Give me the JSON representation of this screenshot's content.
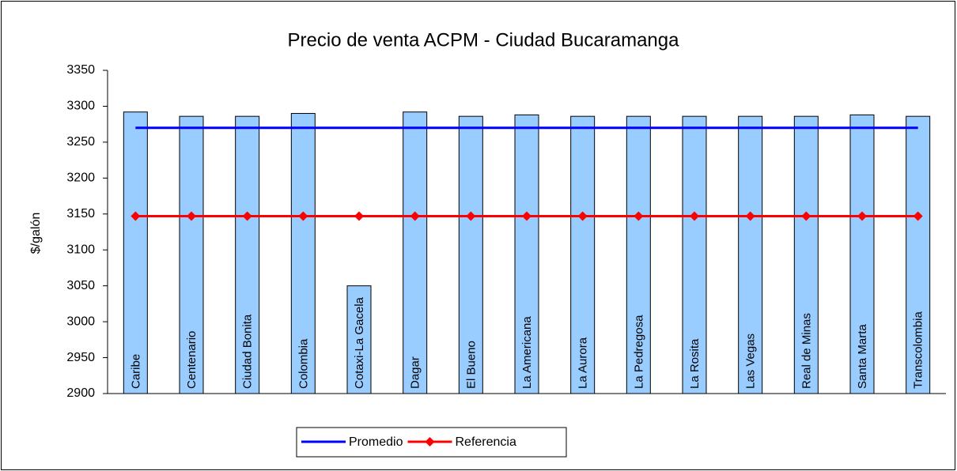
{
  "chart_data": {
    "type": "bar",
    "title": "Precio de venta ACPM - Ciudad Bucaramanga",
    "y_label": "$/galón",
    "categories": [
      "Caribe",
      "Centenario",
      "Ciudad Bonita",
      "Colombia",
      "Cotaxi-La Gacela",
      "Dagar",
      "El Bueno",
      "La Americana",
      "La Aurora",
      "La Pedregosa",
      "La Rosita",
      "Las Vegas",
      "Real de Minas",
      "Santa Marta",
      "Transcolombia"
    ],
    "values": [
      3292,
      3286,
      3286,
      3290,
      3050,
      3292,
      3286,
      3288,
      3286,
      3286,
      3286,
      3286,
      3286,
      3288,
      3286
    ],
    "color": "#99ccff",
    "series": [
      {
        "name": "Promedio",
        "color": "#0000ff",
        "marker": false,
        "values": [
          3270,
          3270,
          3270,
          3270,
          3270,
          3270,
          3270,
          3270,
          3270,
          3270,
          3270,
          3270,
          3270,
          3270,
          3270
        ]
      },
      {
        "name": "Referencia",
        "color": "#ff0000",
        "marker": true,
        "values": [
          3147,
          3147,
          3147,
          3147,
          3147,
          3147,
          3147,
          3147,
          3147,
          3147,
          3147,
          3147,
          3147,
          3147,
          3147
        ]
      }
    ],
    "ylim": [
      2900,
      3350
    ],
    "yticks": [
      2900,
      2950,
      3000,
      3050,
      3100,
      3150,
      3200,
      3250,
      3300,
      3350
    ],
    "grid": false,
    "legend": "bottom"
  }
}
